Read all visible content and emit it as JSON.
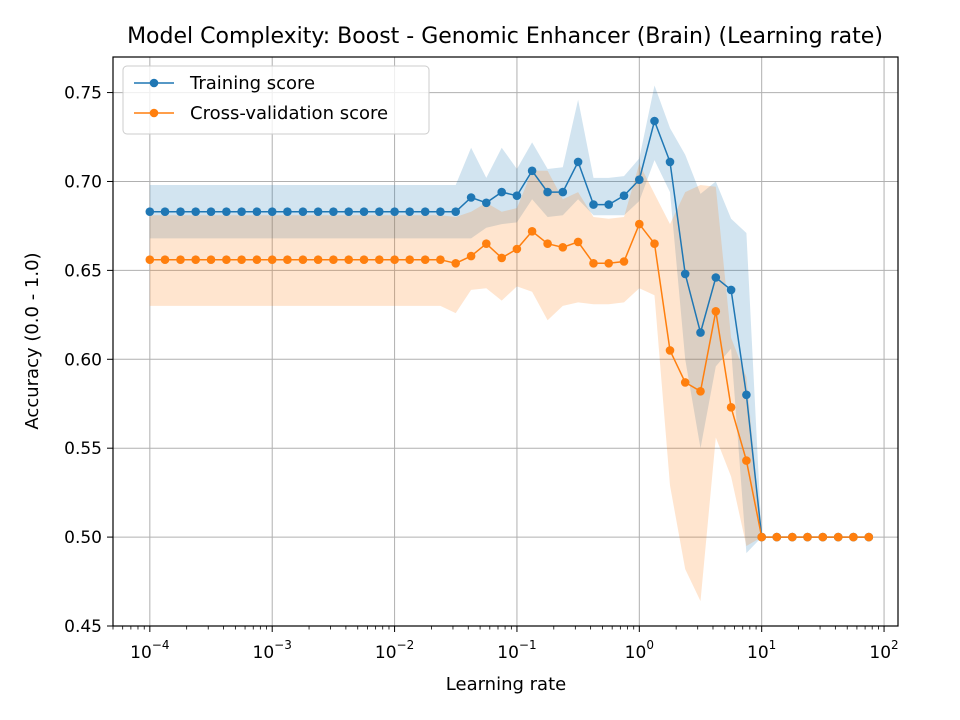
{
  "chart_data": {
    "type": "line",
    "title": "Model Complexity: Boost - Genomic Enhancer (Brain) (Learning rate)",
    "xlabel": "Learning rate",
    "ylabel": "Accuracy (0.0 - 1.0)",
    "x_scale": "log",
    "xlim": [
      5e-05,
      130
    ],
    "ylim": [
      0.45,
      0.77
    ],
    "x_tick_labels": [
      "10^-4",
      "10^-3",
      "10^-2",
      "10^-1",
      "10^0",
      "10^1",
      "10^2"
    ],
    "y_ticks": [
      0.45,
      0.5,
      0.55,
      0.6,
      0.65,
      0.7,
      0.75
    ],
    "y_tick_labels": [
      "0.45",
      "0.50",
      "0.55",
      "0.60",
      "0.65",
      "0.70",
      "0.75"
    ],
    "grid": true,
    "legend_position": "top-left",
    "x": [
      0.0001,
      0.000133,
      0.000178,
      0.000237,
      0.000316,
      0.000422,
      0.000562,
      0.00075,
      0.001,
      0.00133,
      0.00178,
      0.00237,
      0.00316,
      0.00422,
      0.00562,
      0.0075,
      0.01,
      0.0133,
      0.0178,
      0.0237,
      0.0316,
      0.0422,
      0.0562,
      0.075,
      0.1,
      0.133,
      0.178,
      0.237,
      0.316,
      0.422,
      0.562,
      0.75,
      1.0,
      1.33,
      1.78,
      2.37,
      3.16,
      4.22,
      5.62,
      7.5,
      10.0,
      13.3,
      17.8,
      23.7,
      31.6,
      42.2,
      56.2,
      75.0
    ],
    "series": [
      {
        "name": "Training score",
        "color": "#1f77b4",
        "band_color": "#1f77b4",
        "values": [
          0.683,
          0.683,
          0.683,
          0.683,
          0.683,
          0.683,
          0.683,
          0.683,
          0.683,
          0.683,
          0.683,
          0.683,
          0.683,
          0.683,
          0.683,
          0.683,
          0.683,
          0.683,
          0.683,
          0.683,
          0.683,
          0.691,
          0.688,
          0.694,
          0.692,
          0.706,
          0.694,
          0.694,
          0.711,
          0.687,
          0.687,
          0.692,
          0.701,
          0.734,
          0.711,
          0.648,
          0.615,
          0.646,
          0.639,
          0.58,
          0.5,
          0.5,
          0.5,
          0.5,
          0.5,
          0.5,
          0.5,
          0.5
        ],
        "lower": [
          0.668,
          0.668,
          0.668,
          0.668,
          0.668,
          0.668,
          0.668,
          0.668,
          0.668,
          0.668,
          0.668,
          0.668,
          0.668,
          0.668,
          0.668,
          0.668,
          0.668,
          0.668,
          0.668,
          0.668,
          0.668,
          0.668,
          0.674,
          0.676,
          0.677,
          0.69,
          0.68,
          0.681,
          0.69,
          0.681,
          0.681,
          0.681,
          0.689,
          0.712,
          0.694,
          0.6,
          0.55,
          0.596,
          0.606,
          0.491,
          0.5,
          0.5,
          0.5,
          0.5,
          0.5,
          0.5,
          0.5,
          0.5
        ],
        "upper": [
          0.698,
          0.698,
          0.698,
          0.698,
          0.698,
          0.698,
          0.698,
          0.698,
          0.698,
          0.698,
          0.698,
          0.698,
          0.698,
          0.698,
          0.698,
          0.698,
          0.698,
          0.698,
          0.698,
          0.698,
          0.698,
          0.719,
          0.702,
          0.719,
          0.707,
          0.722,
          0.707,
          0.708,
          0.746,
          0.702,
          0.702,
          0.703,
          0.713,
          0.754,
          0.73,
          0.715,
          0.693,
          0.7,
          0.679,
          0.671,
          0.5,
          0.5,
          0.5,
          0.5,
          0.5,
          0.5,
          0.5,
          0.5
        ]
      },
      {
        "name": "Cross-validation score",
        "color": "#ff7f0e",
        "band_color": "#ff7f0e",
        "values": [
          0.656,
          0.656,
          0.656,
          0.656,
          0.656,
          0.656,
          0.656,
          0.656,
          0.656,
          0.656,
          0.656,
          0.656,
          0.656,
          0.656,
          0.656,
          0.656,
          0.656,
          0.656,
          0.656,
          0.656,
          0.654,
          0.658,
          0.665,
          0.657,
          0.662,
          0.672,
          0.665,
          0.663,
          0.666,
          0.654,
          0.654,
          0.655,
          0.676,
          0.665,
          0.605,
          0.587,
          0.582,
          0.627,
          0.573,
          0.543,
          0.5,
          0.5,
          0.5,
          0.5,
          0.5,
          0.5,
          0.5,
          0.5
        ],
        "lower": [
          0.63,
          0.63,
          0.63,
          0.63,
          0.63,
          0.63,
          0.63,
          0.63,
          0.63,
          0.63,
          0.63,
          0.63,
          0.63,
          0.63,
          0.63,
          0.63,
          0.63,
          0.63,
          0.63,
          0.63,
          0.626,
          0.639,
          0.64,
          0.633,
          0.641,
          0.638,
          0.622,
          0.63,
          0.632,
          0.631,
          0.631,
          0.632,
          0.64,
          0.636,
          0.529,
          0.482,
          0.464,
          0.556,
          0.534,
          0.495,
          0.5,
          0.5,
          0.5,
          0.5,
          0.5,
          0.5,
          0.5,
          0.5
        ],
        "upper": [
          0.681,
          0.681,
          0.681,
          0.681,
          0.681,
          0.681,
          0.681,
          0.681,
          0.681,
          0.681,
          0.681,
          0.681,
          0.681,
          0.681,
          0.681,
          0.681,
          0.681,
          0.681,
          0.681,
          0.681,
          0.68,
          0.683,
          0.688,
          0.683,
          0.685,
          0.706,
          0.706,
          0.69,
          0.694,
          0.68,
          0.679,
          0.68,
          0.71,
          0.693,
          0.676,
          0.694,
          0.698,
          0.697,
          0.612,
          0.59,
          0.5,
          0.5,
          0.5,
          0.5,
          0.5,
          0.5,
          0.5,
          0.5
        ]
      }
    ]
  }
}
